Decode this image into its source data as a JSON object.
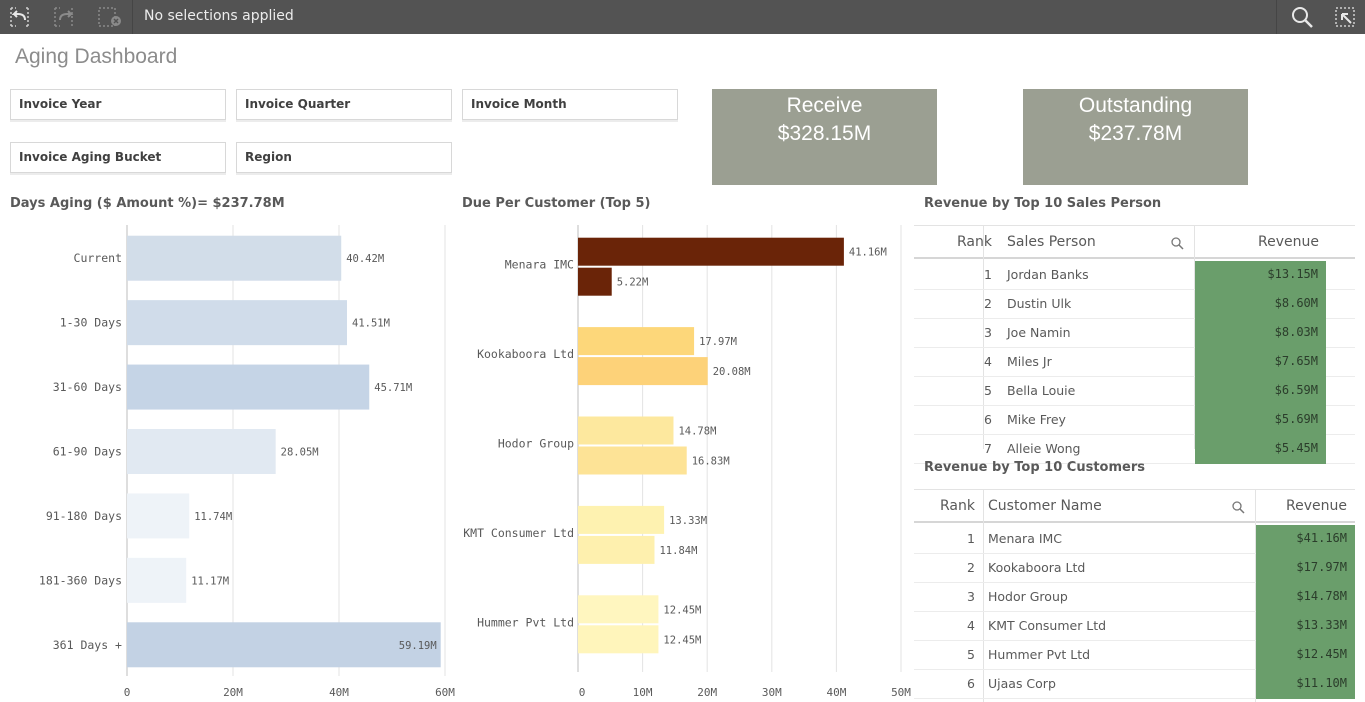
{
  "toolbar": {
    "selections_text": "No selections applied",
    "icons": [
      "back-step-icon",
      "forward-step-icon",
      "clear-selections-icon",
      "search-icon",
      "smart-search-icon"
    ]
  },
  "page_title": "Aging Dashboard",
  "filters": [
    "Invoice Year",
    "Invoice Quarter",
    "Invoice Month",
    "Invoice Aging Bucket",
    "Region"
  ],
  "kpis": [
    {
      "label": "Receive",
      "value": "$328.15M"
    },
    {
      "label": "Outstanding",
      "value": "$237.78M"
    }
  ],
  "colors": {
    "kpi_bg": "#9b9f92",
    "revenue_cell": "#6a9e6b",
    "toolbar": "#535353"
  },
  "chart_data": [
    {
      "type": "bar",
      "orientation": "horizontal",
      "title": "Days Aging ($ Amount %)= $237.78M",
      "categories": [
        "Current",
        "1-30 Days",
        "31-60 Days",
        "61-90 Days",
        "91-180 Days",
        "181-360 Days",
        "361 Days +"
      ],
      "values": [
        40.42,
        41.51,
        45.71,
        28.05,
        11.74,
        11.17,
        59.19
      ],
      "value_labels": [
        "40.42M",
        "41.51M",
        "45.71M",
        "28.05M",
        "11.74M",
        "11.17M",
        "59.19M"
      ],
      "colors": [
        "#d2dde9",
        "#d0dcea",
        "#c5d4e6",
        "#e1e9f2",
        "#eef3f8",
        "#eef3f8",
        "#c3d2e4"
      ],
      "xlim": [
        0,
        60
      ],
      "ticks": [
        "0",
        "20M",
        "40M",
        "60M"
      ],
      "tick_values": [
        0,
        20,
        40,
        60
      ],
      "grid": true
    },
    {
      "type": "bar",
      "orientation": "horizontal",
      "title": "Due Per Customer (Top 5)",
      "categories": [
        "Menara IMC",
        "Kookaboora Ltd",
        "Hodor Group",
        "KMT Consumer Ltd",
        "Hummer Pvt Ltd"
      ],
      "series": [
        {
          "values": [
            41.16,
            17.97,
            14.78,
            13.33,
            12.45
          ],
          "labels": [
            "41.16M",
            "17.97M",
            "14.78M",
            "13.33M",
            "12.45M"
          ]
        },
        {
          "values": [
            5.22,
            20.08,
            16.83,
            11.84,
            12.45
          ],
          "labels": [
            "5.22M",
            "20.08M",
            "16.83M",
            "11.84M",
            "12.45M"
          ]
        }
      ],
      "colors": [
        [
          "#6a2408",
          "#6a2408"
        ],
        [
          "#fdd77a",
          "#fdd279"
        ],
        [
          "#fde89e",
          "#fde396"
        ],
        [
          "#fef2b0",
          "#fef0ae"
        ],
        [
          "#fff6bf",
          "#fff5bb"
        ]
      ],
      "xlim": [
        0,
        50
      ],
      "ticks": [
        "0",
        "10M",
        "20M",
        "30M",
        "40M",
        "50M"
      ],
      "tick_values": [
        0,
        10,
        20,
        30,
        40,
        50
      ],
      "grid": true
    }
  ],
  "sales_table": {
    "title": "Revenue by Top 10 Sales Person",
    "columns": [
      "Rank",
      "Sales Person",
      "Revenue"
    ],
    "rows": [
      [
        "1",
        "Jordan Banks",
        "$13.15M"
      ],
      [
        "2",
        "Dustin Ulk",
        "$8.60M"
      ],
      [
        "3",
        "Joe Namin",
        "$8.03M"
      ],
      [
        "4",
        "Miles Jr",
        "$7.65M"
      ],
      [
        "5",
        "Bella Louie",
        "$6.59M"
      ],
      [
        "6",
        "Mike Frey",
        "$5.69M"
      ],
      [
        "7",
        "Alleie Wong",
        "$5.45M"
      ]
    ]
  },
  "customers_table": {
    "title": "Revenue by Top 10 Customers",
    "columns": [
      "Rank",
      "Customer Name",
      "Revenue"
    ],
    "rows": [
      [
        "1",
        "Menara IMC",
        "$41.16M"
      ],
      [
        "2",
        "Kookaboora Ltd",
        "$17.97M"
      ],
      [
        "3",
        "Hodor Group",
        "$14.78M"
      ],
      [
        "4",
        "KMT Consumer Ltd",
        "$13.33M"
      ],
      [
        "5",
        "Hummer Pvt Ltd",
        "$12.45M"
      ],
      [
        "6",
        "Ujaas Corp",
        "$11.10M"
      ]
    ]
  }
}
